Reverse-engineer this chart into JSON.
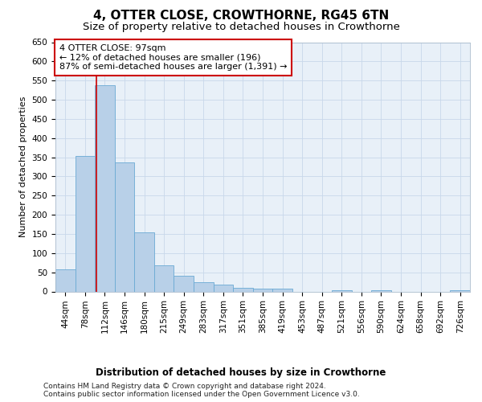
{
  "title": "4, OTTER CLOSE, CROWTHORNE, RG45 6TN",
  "subtitle": "Size of property relative to detached houses in Crowthorne",
  "xlabel": "Distribution of detached houses by size in Crowthorne",
  "ylabel": "Number of detached properties",
  "bar_labels": [
    "44sqm",
    "78sqm",
    "112sqm",
    "146sqm",
    "180sqm",
    "215sqm",
    "249sqm",
    "283sqm",
    "317sqm",
    "351sqm",
    "385sqm",
    "419sqm",
    "453sqm",
    "487sqm",
    "521sqm",
    "556sqm",
    "590sqm",
    "624sqm",
    "658sqm",
    "692sqm",
    "726sqm"
  ],
  "bar_values": [
    57,
    353,
    538,
    336,
    155,
    68,
    41,
    24,
    17,
    10,
    8,
    8,
    0,
    0,
    3,
    0,
    3,
    0,
    0,
    0,
    3
  ],
  "bar_color": "#b8d0e8",
  "bar_edge_color": "#6aaad4",
  "property_line_x": 1.56,
  "annotation_line1": "4 OTTER CLOSE: 97sqm",
  "annotation_line2": "← 12% of detached houses are smaller (196)",
  "annotation_line3": "87% of semi-detached houses are larger (1,391) →",
  "annotation_box_color": "#ffffff",
  "annotation_box_edge_color": "#cc0000",
  "property_line_color": "#cc0000",
  "ylim": [
    0,
    650
  ],
  "yticks": [
    0,
    50,
    100,
    150,
    200,
    250,
    300,
    350,
    400,
    450,
    500,
    550,
    600,
    650
  ],
  "grid_color": "#c8d8ea",
  "bg_color": "#e8f0f8",
  "footer_line1": "Contains HM Land Registry data © Crown copyright and database right 2024.",
  "footer_line2": "Contains public sector information licensed under the Open Government Licence v3.0.",
  "title_fontsize": 11,
  "subtitle_fontsize": 9.5,
  "ylabel_fontsize": 8,
  "xlabel_fontsize": 8.5,
  "tick_fontsize": 7.5,
  "annotation_fontsize": 8,
  "footer_fontsize": 6.5
}
